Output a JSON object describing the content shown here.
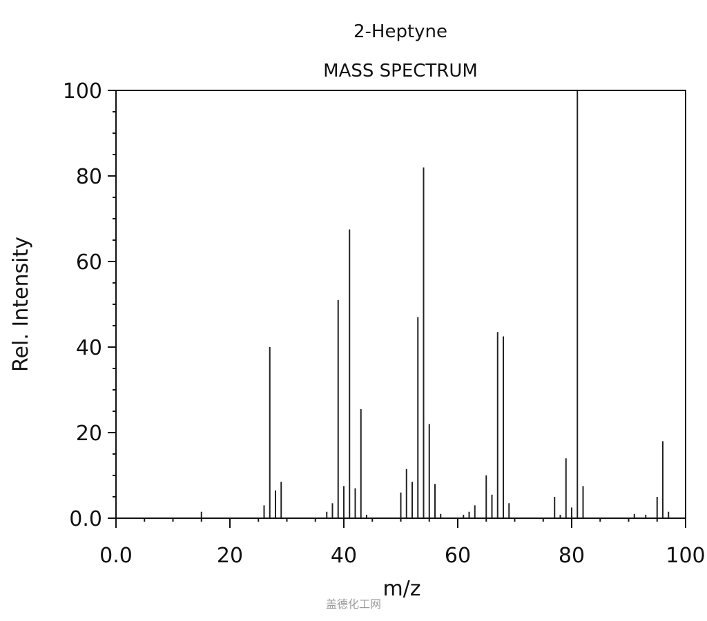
{
  "chart_data": {
    "type": "bar",
    "title": "2-Heptyne",
    "subtitle": "MASS SPECTRUM",
    "xlabel": "m/z",
    "ylabel": "Rel. Intensity",
    "xlim": [
      0,
      100
    ],
    "ylim": [
      0,
      100
    ],
    "x_ticks": [
      0,
      20,
      40,
      60,
      80,
      100
    ],
    "x_tick_labels": [
      "0.0",
      "20",
      "40",
      "60",
      "80",
      "100"
    ],
    "y_ticks": [
      0,
      20,
      40,
      60,
      80,
      100
    ],
    "y_tick_labels": [
      "0.0",
      "20",
      "40",
      "60",
      "80",
      "100"
    ],
    "grid": false,
    "peaks": [
      {
        "mz": 15,
        "intensity": 1.5
      },
      {
        "mz": 26,
        "intensity": 3
      },
      {
        "mz": 27,
        "intensity": 40
      },
      {
        "mz": 28,
        "intensity": 6.5
      },
      {
        "mz": 29,
        "intensity": 8.5
      },
      {
        "mz": 37,
        "intensity": 1.5
      },
      {
        "mz": 38,
        "intensity": 3.5
      },
      {
        "mz": 39,
        "intensity": 51
      },
      {
        "mz": 40,
        "intensity": 7.5
      },
      {
        "mz": 41,
        "intensity": 67.5
      },
      {
        "mz": 42,
        "intensity": 7
      },
      {
        "mz": 43,
        "intensity": 25.5
      },
      {
        "mz": 44,
        "intensity": 0.8
      },
      {
        "mz": 50,
        "intensity": 6
      },
      {
        "mz": 51,
        "intensity": 11.5
      },
      {
        "mz": 52,
        "intensity": 8.5
      },
      {
        "mz": 53,
        "intensity": 47
      },
      {
        "mz": 54,
        "intensity": 82
      },
      {
        "mz": 55,
        "intensity": 22
      },
      {
        "mz": 56,
        "intensity": 8
      },
      {
        "mz": 57,
        "intensity": 1
      },
      {
        "mz": 61,
        "intensity": 0.8
      },
      {
        "mz": 62,
        "intensity": 1.5
      },
      {
        "mz": 63,
        "intensity": 3
      },
      {
        "mz": 65,
        "intensity": 10
      },
      {
        "mz": 66,
        "intensity": 5.5
      },
      {
        "mz": 67,
        "intensity": 43.5
      },
      {
        "mz": 68,
        "intensity": 42.5
      },
      {
        "mz": 69,
        "intensity": 3.5
      },
      {
        "mz": 77,
        "intensity": 5
      },
      {
        "mz": 78,
        "intensity": 0.8
      },
      {
        "mz": 79,
        "intensity": 14
      },
      {
        "mz": 80,
        "intensity": 2.5
      },
      {
        "mz": 81,
        "intensity": 100
      },
      {
        "mz": 82,
        "intensity": 7.5
      },
      {
        "mz": 91,
        "intensity": 1
      },
      {
        "mz": 93,
        "intensity": 0.8
      },
      {
        "mz": 95,
        "intensity": 5
      },
      {
        "mz": 96,
        "intensity": 18
      },
      {
        "mz": 97,
        "intensity": 1.5
      }
    ]
  },
  "watermark_text": "盖德化工网"
}
